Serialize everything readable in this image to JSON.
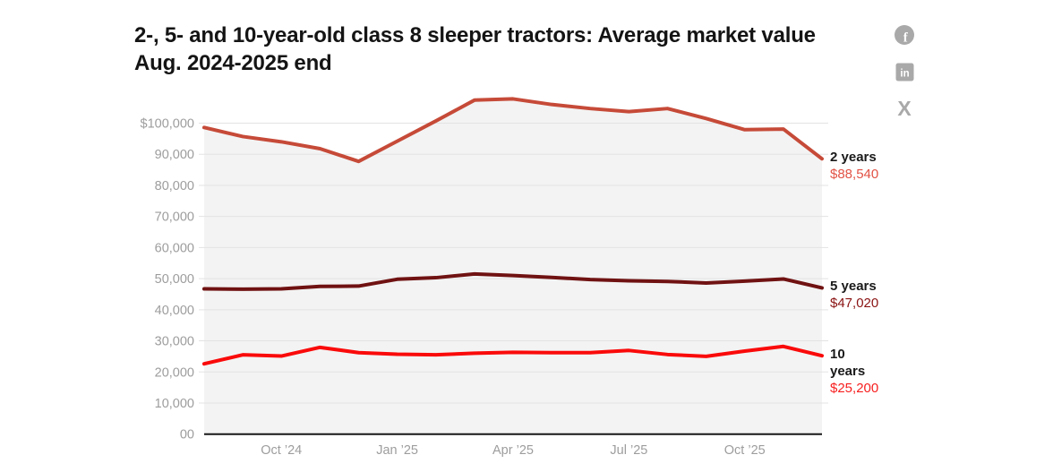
{
  "header": {
    "title": "2-, 5- and 10-year-old class 8 sleeper tractors: Average market value Aug. 2024-2025 end"
  },
  "share": {
    "icon_color": "#a9a9a9",
    "facebook_glyph": "f",
    "linkedin_glyph": "in",
    "x_glyph": "X"
  },
  "chart_data": {
    "type": "line",
    "title": "2-, 5- and 10-year-old class 8 sleeper tractors: Average market value Aug. 2024-2025 end",
    "x": [
      "Aug '24",
      "Sep '24",
      "Oct '24",
      "Nov '24",
      "Dec '24",
      "Jan '25",
      "Feb '25",
      "Mar '25",
      "Apr '25",
      "May '25",
      "Jun '25",
      "Jul '25",
      "Aug '25",
      "Sep '25",
      "Oct '25",
      "Nov '25",
      "Dec '25"
    ],
    "x_ticks": [
      {
        "label": "Oct ’24",
        "index": 2
      },
      {
        "label": "Jan ’25",
        "index": 5
      },
      {
        "label": "Apr ’25",
        "index": 8
      },
      {
        "label": "Jul ’25",
        "index": 11
      },
      {
        "label": "Oct ’25",
        "index": 14
      }
    ],
    "y_ticks": [
      {
        "label": "$100,000",
        "value": 100000
      },
      {
        "label": "90,000",
        "value": 90000
      },
      {
        "label": "80,000",
        "value": 80000
      },
      {
        "label": "70,000",
        "value": 70000
      },
      {
        "label": "60,000",
        "value": 60000
      },
      {
        "label": "50,000",
        "value": 50000
      },
      {
        "label": "40,000",
        "value": 40000
      },
      {
        "label": "30,000",
        "value": 30000
      },
      {
        "label": "20,000",
        "value": 20000
      },
      {
        "label": "10,000",
        "value": 10000
      },
      {
        "label": "00",
        "value": 0
      }
    ],
    "ylim": [
      0,
      110000
    ],
    "grid": true,
    "legend_position": "right-end-labels",
    "colors": {
      "grid": "#e3e3e3",
      "baseline": "#171717",
      "axis_text": "#9d9d9d",
      "area_fill": "#f3f3f3"
    },
    "series": [
      {
        "name": "2 years",
        "end_value_label": "$88,540",
        "line_color": "#c64a38",
        "value_color": "#e25144",
        "values": [
          98600,
          95700,
          94000,
          91800,
          87700,
          94200,
          100700,
          107400,
          107800,
          106000,
          104700,
          103700,
          104700,
          101500,
          97900,
          98100,
          88540
        ]
      },
      {
        "name": "5 years",
        "end_value_label": "$47,020",
        "line_color": "#701212",
        "value_color": "#8a1212",
        "values": [
          46700,
          46600,
          46700,
          47500,
          47600,
          49800,
          50300,
          51500,
          51000,
          50400,
          49700,
          49300,
          49100,
          48600,
          49200,
          49900,
          47020
        ]
      },
      {
        "name": "10 years",
        "end_value_label": "$25,200",
        "line_color": "#fa0a0a",
        "value_color": "#f71e1e",
        "values": [
          22600,
          25500,
          25100,
          27900,
          26200,
          25700,
          25500,
          26000,
          26300,
          26200,
          26200,
          26900,
          25600,
          25000,
          26700,
          28200,
          25200
        ]
      }
    ]
  }
}
